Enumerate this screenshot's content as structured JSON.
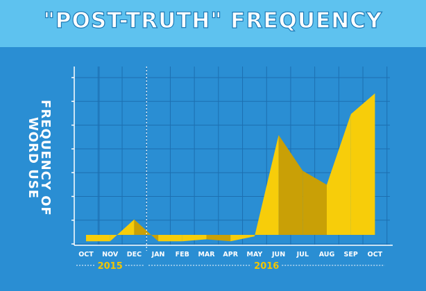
{
  "page": {
    "title": "\"POST-TRUTH\" FREQUENCY",
    "background": "#2a8ed3",
    "banner_color": "#5ec2ef",
    "gridline_color": "#1d6fb0",
    "fill_colors": {
      "light": "#f7cd0a",
      "dark": "#c9a006"
    }
  },
  "chart_data": {
    "type": "area",
    "title": "\"POST-TRUTH\" FREQUENCY",
    "xlabel": "",
    "ylabel": "FREQUENCY OF WORD USE",
    "categories": [
      "OCT",
      "NOV",
      "DEC",
      "JAN",
      "FEB",
      "MAR",
      "APR",
      "MAY",
      "JUN",
      "JUL",
      "AUG",
      "SEP",
      "OCT"
    ],
    "x_groups": [
      {
        "label": "2015",
        "from": 0,
        "to": 2
      },
      {
        "label": "2016",
        "from": 3,
        "to": 12
      }
    ],
    "values": [
      0.4,
      0.4,
      2.6,
      0.4,
      0.4,
      0.6,
      0.4,
      0.9,
      11.1,
      7.5,
      6.1,
      13.2,
      15.3
    ],
    "ylim": [
      0,
      18
    ],
    "grid": true,
    "show_tick_values": false
  }
}
